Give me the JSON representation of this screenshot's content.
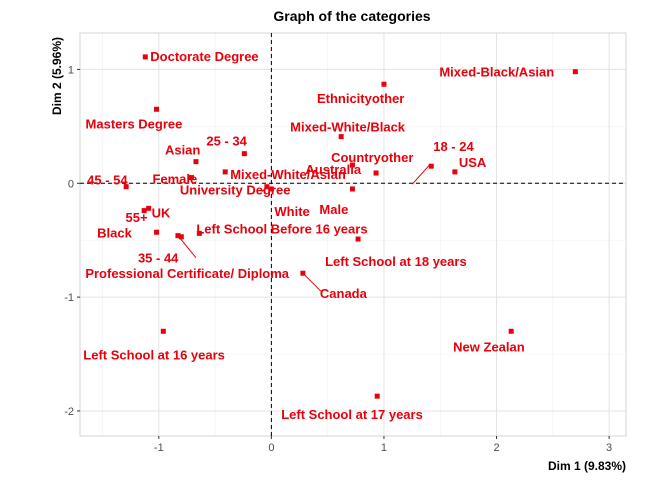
{
  "chart_data": {
    "type": "scatter",
    "title": "Graph of the categories",
    "xlabel": "Dim 1 (9.83%)",
    "ylabel": "Dim 2 (5.96%)",
    "xlim": [
      -1.7,
      3.15
    ],
    "ylim": [
      -2.22,
      1.32
    ],
    "x_ticks": [
      -1,
      0,
      1,
      2,
      3
    ],
    "y_ticks": [
      -2,
      -1,
      0,
      1
    ],
    "grid": true,
    "reference_lines": {
      "x": 0,
      "y": 0
    },
    "color": "#e8000b",
    "points": [
      {
        "label": "Doctorate Degree",
        "x": -1.12,
        "y": 1.11
      },
      {
        "label": "Ethnicityother",
        "x": 1.0,
        "y": 0.87
      },
      {
        "label": "Mixed-Black/Asian",
        "x": 2.7,
        "y": 0.98
      },
      {
        "label": "Masters Degree",
        "x": -1.02,
        "y": 0.65
      },
      {
        "label": "Mixed-White/Black",
        "x": 0.62,
        "y": 0.41
      },
      {
        "label": "Asian",
        "x": -0.67,
        "y": 0.19
      },
      {
        "label": "25 - 34",
        "x": -0.24,
        "y": 0.26
      },
      {
        "label": "Mixed-White/Asian",
        "x": -0.41,
        "y": 0.1
      },
      {
        "label": "Countryother",
        "x": 0.93,
        "y": 0.09
      },
      {
        "label": "18 - 24",
        "x": 1.42,
        "y": 0.15
      },
      {
        "label": "USA",
        "x": 1.63,
        "y": 0.1
      },
      {
        "label": "Australia",
        "x": 0.72,
        "y": 0.16
      },
      {
        "label": "45 - 54",
        "x": -1.29,
        "y": -0.03
      },
      {
        "label": "Female",
        "x": -0.71,
        "y": 0.05
      },
      {
        "label": "University Degree",
        "x": -0.04,
        "y": -0.03
      },
      {
        "label": "White",
        "x": 0.0,
        "y": -0.05
      },
      {
        "label": "Male",
        "x": 0.72,
        "y": -0.05
      },
      {
        "label": "Black",
        "x": -1.13,
        "y": -0.24
      },
      {
        "label": "UK",
        "x": -1.09,
        "y": -0.22
      },
      {
        "label": "55+",
        "x": -1.02,
        "y": -0.43
      },
      {
        "label": "Left School Before 16 years",
        "x": -0.64,
        "y": -0.44
      },
      {
        "label": "Left School at 18 years",
        "x": 0.77,
        "y": -0.49
      },
      {
        "label": "35 - 44",
        "x": -0.83,
        "y": -0.46
      },
      {
        "label": "Professional Certificate/ Diploma",
        "x": -0.8,
        "y": -0.47
      },
      {
        "label": "Canada",
        "x": 0.28,
        "y": -0.79
      },
      {
        "label": "Left School at 16 years",
        "x": -0.96,
        "y": -1.3
      },
      {
        "label": "New Zealan",
        "x": 2.13,
        "y": -1.3
      },
      {
        "label": "Left School at 17 years",
        "x": 0.94,
        "y": -1.87
      }
    ]
  }
}
